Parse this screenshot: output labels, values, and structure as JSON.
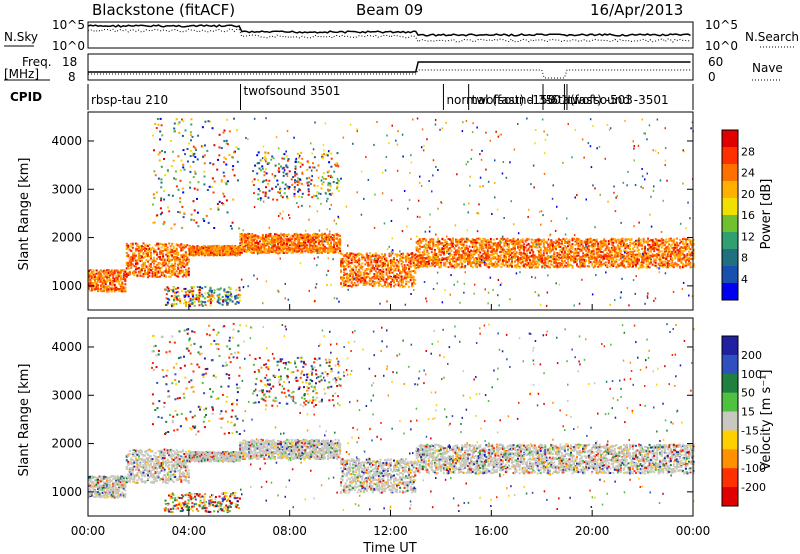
{
  "header": {
    "station": "Blackstone (fitACF)",
    "beam": "Beam 09",
    "date": "16/Apr/2013"
  },
  "noise_panel": {
    "left_label": "N.Sky",
    "right_label": "N.Search",
    "tick_top_left": "10^5",
    "tick_bottom_left": "10^0",
    "tick_top_right": "10^5",
    "tick_bottom_right": "10^0"
  },
  "freq_panel": {
    "left_label_1": "Freq.",
    "left_label_2": "[MHz]",
    "right_label": "Nave",
    "left_ticks": [
      "18",
      "8"
    ],
    "right_ticks": [
      "60",
      "0"
    ]
  },
  "cpid_panel": {
    "label": "CPID",
    "segments": [
      {
        "text": "rbsp-tau 210",
        "start_h": 0
      },
      {
        "text": "twofsound 3501",
        "start_h": 6.05
      },
      {
        "text": "normal (fast) -150",
        "start_h": 14.1
      },
      {
        "text": "twofsound 3501",
        "start_h": 15.1
      },
      {
        "text": "-6tau",
        "start_h": 18.05
      },
      {
        "text": "twofsound -3501",
        "start_h": 18.9
      },
      {
        "text": "(fast) -503",
        "start_h": 19.0
      }
    ]
  },
  "colorbars": {
    "power": {
      "label": "Power [dB]",
      "ticks": [
        "28",
        "24",
        "20",
        "16",
        "12",
        "8",
        "4"
      ],
      "colors": [
        "#e00000",
        "#ff3000",
        "#ff7000",
        "#ffb000",
        "#f0e000",
        "#70c030",
        "#30a070",
        "#207080",
        "#1850b0",
        "#0000f0"
      ]
    },
    "velocity": {
      "label": "Velocity [m s⁻¹]",
      "ticks": [
        "200",
        "100",
        "50",
        "15",
        "-15",
        "-50",
        "-100",
        "-200"
      ],
      "colors": [
        "#2020a0",
        "#3050c0",
        "#208040",
        "#50c040",
        "#c8c8c0",
        "#ffd000",
        "#ff9000",
        "#ff3000",
        "#e00000"
      ]
    }
  },
  "chart_data": {
    "type": "heatmap",
    "xlabel": "Time UT",
    "x_ticks": [
      "00:00",
      "04:00",
      "08:00",
      "12:00",
      "16:00",
      "20:00",
      "00:00"
    ],
    "xlim_hours": [
      0,
      24
    ],
    "ylabel": "Slant Range [km]",
    "y_ticks": [
      1000,
      2000,
      3000,
      4000
    ],
    "ylim_km": [
      500,
      4600
    ],
    "panels": [
      "Power",
      "Velocity"
    ],
    "echo_bands": [
      {
        "t": [
          0,
          1.5
        ],
        "r": [
          900,
          1350
        ]
      },
      {
        "t": [
          1.5,
          4
        ],
        "r": [
          1200,
          1900
        ]
      },
      {
        "t": [
          4,
          6
        ],
        "r": [
          1650,
          1850
        ]
      },
      {
        "t": [
          6,
          10
        ],
        "r": [
          1700,
          2100
        ]
      },
      {
        "t": [
          10,
          13
        ],
        "r": [
          1000,
          1700
        ]
      },
      {
        "t": [
          13,
          24
        ],
        "r": [
          1400,
          2000
        ]
      }
    ],
    "sparse_regions": [
      {
        "t": [
          2.5,
          6
        ],
        "r": [
          2200,
          4500
        ]
      },
      {
        "t": [
          3,
          6
        ],
        "r": [
          600,
          1000
        ]
      },
      {
        "t": [
          6.5,
          10
        ],
        "r": [
          2800,
          3800
        ]
      }
    ]
  }
}
